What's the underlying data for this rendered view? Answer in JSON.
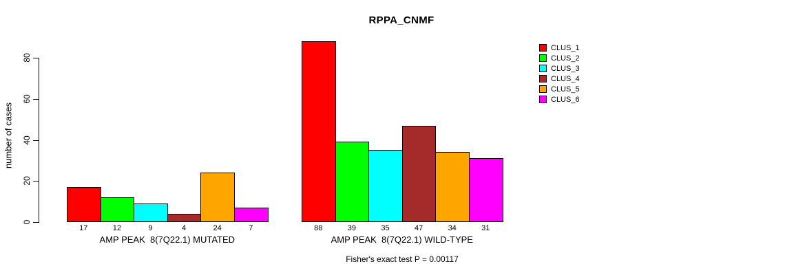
{
  "title": "RPPA_CNMF",
  "y_axis": {
    "label": "number of cases",
    "ticks": [
      "0",
      "20",
      "40",
      "60",
      "80"
    ]
  },
  "footer": "Fisher's exact test P = 0.00117",
  "legend": {
    "items": [
      {
        "label": "CLUS_1",
        "color": "#FF0000"
      },
      {
        "label": "CLUS_2",
        "color": "#00FF00"
      },
      {
        "label": "CLUS_3",
        "color": "#00FFFF"
      },
      {
        "label": "CLUS_4",
        "color": "#A52A2A"
      },
      {
        "label": "CLUS_5",
        "color": "#FFA500"
      },
      {
        "label": "CLUS_6",
        "color": "#FF00FF"
      }
    ]
  },
  "chart_data": {
    "type": "bar",
    "title": "RPPA_CNMF",
    "xlabel": "",
    "ylabel": "number of cases",
    "ylim": [
      0,
      88
    ],
    "yticks": [
      0,
      20,
      40,
      60,
      80
    ],
    "grid": false,
    "legend_position": "right",
    "series_labels": [
      "CLUS_1",
      "CLUS_2",
      "CLUS_3",
      "CLUS_4",
      "CLUS_5",
      "CLUS_6"
    ],
    "colors": [
      "#FF0000",
      "#00FF00",
      "#00FFFF",
      "#A52A2A",
      "#FFA500",
      "#FF00FF"
    ],
    "groups": [
      {
        "label": "AMP PEAK  8(7Q22.1) MUTATED",
        "values": [
          17,
          12,
          9,
          4,
          24,
          7
        ]
      },
      {
        "label": "AMP PEAK  8(7Q22.1) WILD-TYPE",
        "values": [
          88,
          39,
          35,
          47,
          34,
          31
        ]
      }
    ],
    "annotation": "Fisher's exact test P = 0.00117"
  }
}
